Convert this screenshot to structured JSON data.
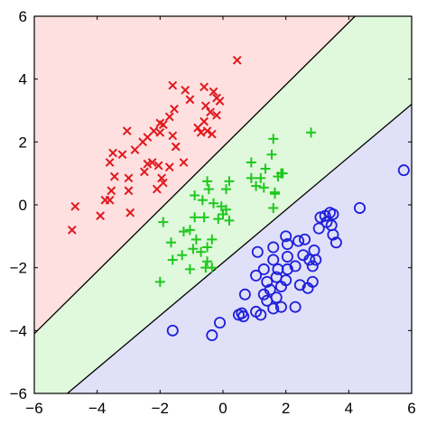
{
  "chart_data": {
    "type": "scatter",
    "xlim": [
      -6,
      6
    ],
    "ylim": [
      -6,
      6
    ],
    "x_ticks": [
      -6,
      -4,
      -2,
      0,
      2,
      4,
      6
    ],
    "y_ticks": [
      -6,
      -4,
      -2,
      0,
      2,
      4,
      6
    ],
    "x_tick_labels": [
      "−6",
      "−4",
      "−2",
      "0",
      "2",
      "4",
      "6"
    ],
    "y_tick_labels": [
      "−6",
      "−4",
      "−2",
      "0",
      "2",
      "4",
      "6"
    ],
    "grid": false,
    "title": "",
    "xlabel": "",
    "ylabel": "",
    "boundaries": [
      {
        "p1": [
          -6,
          -4.1
        ],
        "p2": [
          4.2,
          6
        ]
      },
      {
        "p1": [
          -4.95,
          -6
        ],
        "p2": [
          6,
          3.2
        ]
      }
    ],
    "regions": [
      {
        "color": "#ffe0e0"
      },
      {
        "color": "#e0f8dc"
      },
      {
        "color": "#e0e0f8"
      }
    ],
    "series": [
      {
        "marker": "x",
        "color": "#e0191e",
        "points": [
          [
            0.45,
            4.6
          ],
          [
            -1.6,
            3.8
          ],
          [
            -1.2,
            3.65
          ],
          [
            -1.05,
            3.35
          ],
          [
            -0.6,
            3.75
          ],
          [
            -0.3,
            3.6
          ],
          [
            -0.2,
            3.4
          ],
          [
            -0.1,
            3.3
          ],
          [
            -0.55,
            3.15
          ],
          [
            -0.4,
            2.95
          ],
          [
            -0.2,
            2.85
          ],
          [
            -0.6,
            2.65
          ],
          [
            -0.8,
            2.45
          ],
          [
            -0.5,
            2.35
          ],
          [
            -0.35,
            2.25
          ],
          [
            -0.7,
            2.3
          ],
          [
            -1.55,
            3.05
          ],
          [
            -1.7,
            2.8
          ],
          [
            -1.9,
            2.55
          ],
          [
            -1.6,
            2.2
          ],
          [
            -1.5,
            1.85
          ],
          [
            -2.0,
            2.6
          ],
          [
            -2.2,
            2.35
          ],
          [
            -2.4,
            2.15
          ],
          [
            -2.55,
            2.0
          ],
          [
            -2.8,
            1.75
          ],
          [
            -2.0,
            2.3
          ],
          [
            -3.05,
            2.35
          ],
          [
            -3.5,
            1.65
          ],
          [
            -3.2,
            1.6
          ],
          [
            -3.6,
            1.35
          ],
          [
            -3.45,
            0.9
          ],
          [
            -3.55,
            0.45
          ],
          [
            -3.75,
            0.15
          ],
          [
            -3.6,
            0.15
          ],
          [
            -3.0,
            0.85
          ],
          [
            -3.0,
            0.45
          ],
          [
            -2.5,
            1.05
          ],
          [
            -2.25,
            1.35
          ],
          [
            -2.05,
            1.25
          ],
          [
            -1.7,
            1.2
          ],
          [
            -1.95,
            0.85
          ],
          [
            -2.1,
            0.5
          ],
          [
            -1.9,
            0.7
          ],
          [
            -1.25,
            1.35
          ],
          [
            -2.4,
            1.3
          ],
          [
            -2.95,
            -0.25
          ],
          [
            -3.9,
            -0.35
          ],
          [
            -4.7,
            -0.05
          ],
          [
            -4.8,
            -0.8
          ]
        ]
      },
      {
        "marker": "+",
        "color": "#1ec81e",
        "points": [
          [
            2.8,
            2.3
          ],
          [
            1.6,
            2.1
          ],
          [
            1.55,
            1.6
          ],
          [
            1.35,
            1.15
          ],
          [
            1.85,
            1.0
          ],
          [
            1.9,
            1.0
          ],
          [
            0.9,
            1.35
          ],
          [
            0.9,
            0.85
          ],
          [
            1.2,
            0.85
          ],
          [
            1.05,
            0.6
          ],
          [
            1.3,
            0.55
          ],
          [
            1.65,
            0.4
          ],
          [
            1.75,
            0.9
          ],
          [
            1.6,
            -0.1
          ],
          [
            1.65,
            0.35
          ],
          [
            0.2,
            0.75
          ],
          [
            0.1,
            0.5
          ],
          [
            -0.5,
            0.75
          ],
          [
            -0.45,
            0.5
          ],
          [
            -0.9,
            0.3
          ],
          [
            -0.65,
            0.15
          ],
          [
            -0.3,
            0.05
          ],
          [
            -0.05,
            -0.05
          ],
          [
            0.1,
            -0.15
          ],
          [
            0.0,
            -0.3
          ],
          [
            -0.15,
            -0.45
          ],
          [
            0.2,
            -0.5
          ],
          [
            -0.6,
            -0.4
          ],
          [
            -0.9,
            -0.4
          ],
          [
            -1.05,
            -0.8
          ],
          [
            -1.25,
            -0.85
          ],
          [
            -0.85,
            -1.1
          ],
          [
            -0.35,
            -1.1
          ],
          [
            -0.5,
            -1.35
          ],
          [
            -0.95,
            -1.4
          ],
          [
            -1.3,
            -1.6
          ],
          [
            -0.7,
            -1.5
          ],
          [
            -0.5,
            -1.8
          ],
          [
            -0.55,
            -2.0
          ],
          [
            -1.05,
            -2.05
          ],
          [
            -1.9,
            -0.55
          ],
          [
            -1.65,
            -1.2
          ],
          [
            -1.6,
            -1.75
          ],
          [
            -2.0,
            -2.45
          ],
          [
            -0.35,
            -2.0
          ]
        ]
      },
      {
        "marker": "o",
        "color": "#1e1edc",
        "points": [
          [
            5.75,
            1.1
          ],
          [
            4.35,
            -0.1
          ],
          [
            3.4,
            -0.25
          ],
          [
            3.5,
            -0.3
          ],
          [
            3.25,
            -0.35
          ],
          [
            3.1,
            -0.4
          ],
          [
            3.3,
            -0.55
          ],
          [
            3.45,
            -0.65
          ],
          [
            3.05,
            -0.75
          ],
          [
            3.5,
            -0.95
          ],
          [
            3.6,
            -1.2
          ],
          [
            2.9,
            -1.45
          ],
          [
            2.6,
            -1.1
          ],
          [
            2.4,
            -1.15
          ],
          [
            2.0,
            -1.0
          ],
          [
            2.05,
            -1.25
          ],
          [
            1.6,
            -1.35
          ],
          [
            2.55,
            -1.6
          ],
          [
            1.1,
            -1.5
          ],
          [
            1.6,
            -1.75
          ],
          [
            2.05,
            -1.65
          ],
          [
            2.3,
            -1.95
          ],
          [
            2.75,
            -1.75
          ],
          [
            2.85,
            -1.95
          ],
          [
            2.95,
            -1.75
          ],
          [
            2.05,
            -2.05
          ],
          [
            1.75,
            -2.05
          ],
          [
            1.3,
            -2.05
          ],
          [
            1.05,
            -2.25
          ],
          [
            1.7,
            -2.3
          ],
          [
            2.0,
            -2.4
          ],
          [
            2.45,
            -2.55
          ],
          [
            2.85,
            -2.45
          ],
          [
            1.4,
            -2.45
          ],
          [
            1.85,
            -2.6
          ],
          [
            1.5,
            -2.7
          ],
          [
            2.7,
            -2.65
          ],
          [
            1.3,
            -2.85
          ],
          [
            1.7,
            -2.95
          ],
          [
            1.4,
            -3.05
          ],
          [
            1.85,
            -3.25
          ],
          [
            1.6,
            -3.3
          ],
          [
            2.3,
            -3.25
          ],
          [
            1.05,
            -3.4
          ],
          [
            1.2,
            -3.5
          ],
          [
            0.7,
            -2.85
          ],
          [
            0.6,
            -3.45
          ],
          [
            0.65,
            -3.55
          ],
          [
            0.5,
            -3.5
          ],
          [
            -0.1,
            -3.75
          ],
          [
            -0.35,
            -4.15
          ],
          [
            -1.6,
            -4.0
          ]
        ]
      }
    ]
  }
}
